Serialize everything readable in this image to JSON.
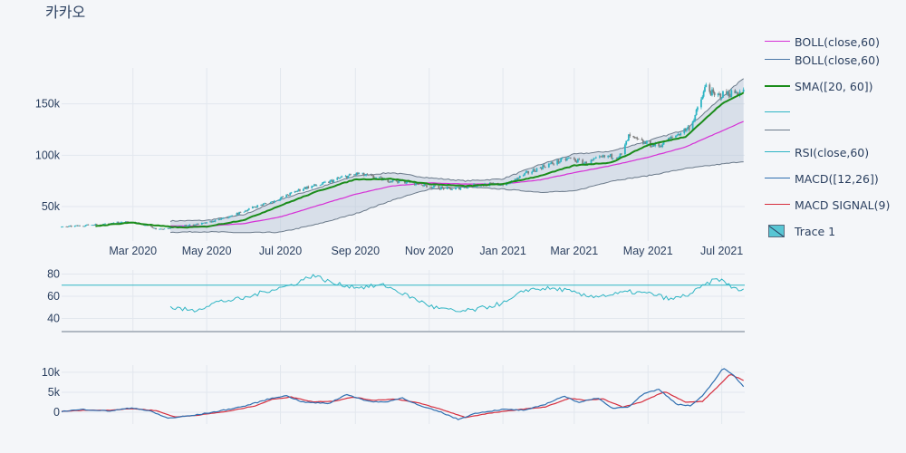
{
  "title": "카카오",
  "legend": [
    {
      "label": "BOLL(close,60)",
      "color": "#d62fd6",
      "kind": "line"
    },
    {
      "label": "BOLL(close,60)",
      "color": "#4c78a8",
      "kind": "line"
    },
    {
      "label": " SMA([20, 60])",
      "color": "#1a8c1a",
      "kind": "thick"
    },
    {
      "label": "",
      "color": "#2fb5c4",
      "kind": "line"
    },
    {
      "label": "",
      "color": "#6b7a8a",
      "kind": "line"
    },
    {
      "label": "RSI(close,60)",
      "color": "#2fb5c4",
      "kind": "line"
    },
    {
      "label": " MACD([12,26])",
      "color": "#2f6fb0",
      "kind": "line"
    },
    {
      "label": "MACD SIGNAL(9)",
      "color": "#d62f3f",
      "kind": "line"
    },
    {
      "label": "Trace 1",
      "color": "#58c6d4",
      "kind": "box"
    }
  ],
  "colors": {
    "increasing": "#2fb5c4",
    "decreasing": "#7f7f7f",
    "boll_mid": "#d62fd6",
    "boll_band": "#6b7a8a",
    "band_fill": "#b6c4d4",
    "sma": "#1a8c1a",
    "rsi": "#2fb5c4",
    "rsi_line": "#2fb5c4",
    "macd": "#2f6fb0",
    "signal": "#d62f3f",
    "grid": "#e2e7ee"
  },
  "chart_data": [
    {
      "type": "candlestick",
      "xaxis_ticks": [
        "Mar 2020",
        "May 2020",
        "Jul 2020",
        "Sep 2020",
        "Nov 2020",
        "Jan 2021",
        "Mar 2021",
        "May 2021",
        "Jul 2021"
      ],
      "yaxis_ticks": [
        "50k",
        "100k",
        "150k"
      ],
      "x_range": [
        "2020-01-02",
        "2021-07-20"
      ],
      "ylim": [
        20000,
        185000
      ],
      "price_keypoints": [
        [
          "2020-01-02",
          30000
        ],
        [
          "2020-02-10",
          33500
        ],
        [
          "2020-02-21",
          35000
        ],
        [
          "2020-03-05",
          34000
        ],
        [
          "2020-03-23",
          27500
        ],
        [
          "2020-04-10",
          31000
        ],
        [
          "2020-05-01",
          34000
        ],
        [
          "2020-05-20",
          40000
        ],
        [
          "2020-06-10",
          50000
        ],
        [
          "2020-06-25",
          55000
        ],
        [
          "2020-07-20",
          68000
        ],
        [
          "2020-08-05",
          72000
        ],
        [
          "2020-08-20",
          78000
        ],
        [
          "2020-09-03",
          82000
        ],
        [
          "2020-09-25",
          76000
        ],
        [
          "2020-10-15",
          74000
        ],
        [
          "2020-11-05",
          69000
        ],
        [
          "2020-11-20",
          67000
        ],
        [
          "2020-12-10",
          71000
        ],
        [
          "2021-01-05",
          72000
        ],
        [
          "2021-01-20",
          82000
        ],
        [
          "2021-02-05",
          90000
        ],
        [
          "2021-02-25",
          97000
        ],
        [
          "2021-03-10",
          92000
        ],
        [
          "2021-03-25",
          98000
        ],
        [
          "2021-04-09",
          100000
        ],
        [
          "2021-04-15",
          118000
        ],
        [
          "2021-04-27",
          112000
        ],
        [
          "2021-05-10",
          109000
        ],
        [
          "2021-05-25",
          120000
        ],
        [
          "2021-06-05",
          128000
        ],
        [
          "2021-06-12",
          147000
        ],
        [
          "2021-06-18",
          168000
        ],
        [
          "2021-06-25",
          157000
        ],
        [
          "2021-07-05",
          160000
        ],
        [
          "2021-07-19",
          162000
        ]
      ],
      "sma20_keypoints": [
        [
          "2020-01-30",
          31000
        ],
        [
          "2020-02-28",
          34500
        ],
        [
          "2020-03-20",
          31500
        ],
        [
          "2020-04-10",
          29500
        ],
        [
          "2020-05-01",
          30500
        ],
        [
          "2020-06-01",
          37000
        ],
        [
          "2020-07-01",
          51000
        ],
        [
          "2020-08-01",
          65000
        ],
        [
          "2020-09-01",
          76500
        ],
        [
          "2020-10-01",
          77000
        ],
        [
          "2020-11-01",
          72000
        ],
        [
          "2020-12-01",
          70000
        ],
        [
          "2021-01-01",
          72000
        ],
        [
          "2021-02-01",
          80000
        ],
        [
          "2021-03-01",
          90000
        ],
        [
          "2021-04-01",
          93000
        ],
        [
          "2021-05-01",
          110000
        ],
        [
          "2021-06-01",
          118000
        ],
        [
          "2021-07-01",
          150000
        ],
        [
          "2021-07-19",
          161000
        ]
      ],
      "boll_mid_keypoints": [
        [
          "2020-04-01",
          31000
        ],
        [
          "2020-05-01",
          31000
        ],
        [
          "2020-06-01",
          33500
        ],
        [
          "2020-07-01",
          40000
        ],
        [
          "2020-08-01",
          51000
        ],
        [
          "2020-09-01",
          62000
        ],
        [
          "2020-10-01",
          70000
        ],
        [
          "2020-11-01",
          73000
        ],
        [
          "2020-12-01",
          72000
        ],
        [
          "2021-01-01",
          72000
        ],
        [
          "2021-02-01",
          76000
        ],
        [
          "2021-03-01",
          83000
        ],
        [
          "2021-04-01",
          90000
        ],
        [
          "2021-05-01",
          98000
        ],
        [
          "2021-06-01",
          108000
        ],
        [
          "2021-07-19",
          133000
        ]
      ],
      "boll_upper_keypoints": [
        [
          "2020-04-01",
          36000
        ],
        [
          "2020-05-01",
          36500
        ],
        [
          "2020-06-01",
          42000
        ],
        [
          "2020-07-01",
          57000
        ],
        [
          "2020-08-01",
          68000
        ],
        [
          "2020-09-01",
          80000
        ],
        [
          "2020-10-01",
          83000
        ],
        [
          "2020-11-01",
          78000
        ],
        [
          "2020-12-01",
          75000
        ],
        [
          "2021-01-01",
          77000
        ],
        [
          "2021-02-01",
          91000
        ],
        [
          "2021-03-01",
          101000
        ],
        [
          "2021-04-01",
          104000
        ],
        [
          "2021-05-01",
          114000
        ],
        [
          "2021-06-01",
          125000
        ],
        [
          "2021-07-19",
          175000
        ]
      ],
      "boll_lower_keypoints": [
        [
          "2020-04-01",
          25000
        ],
        [
          "2020-05-01",
          25500
        ],
        [
          "2020-06-01",
          24500
        ],
        [
          "2020-07-01",
          25000
        ],
        [
          "2020-08-01",
          33000
        ],
        [
          "2020-09-01",
          43000
        ],
        [
          "2020-10-01",
          56000
        ],
        [
          "2020-11-01",
          67000
        ],
        [
          "2020-12-01",
          69000
        ],
        [
          "2021-01-01",
          67000
        ],
        [
          "2021-02-01",
          64000
        ],
        [
          "2021-03-01",
          65000
        ],
        [
          "2021-04-01",
          75000
        ],
        [
          "2021-05-01",
          80000
        ],
        [
          "2021-06-01",
          87000
        ],
        [
          "2021-07-19",
          94000
        ]
      ]
    },
    {
      "type": "line",
      "name": "RSI(close,60)",
      "yaxis_ticks": [
        "40",
        "60",
        "80"
      ],
      "ylim": [
        29,
        82
      ],
      "reference_line": 70,
      "keypoints": [
        [
          "2020-04-01",
          50
        ],
        [
          "2020-04-20",
          47
        ],
        [
          "2020-05-10",
          55
        ],
        [
          "2020-06-01",
          58
        ],
        [
          "2020-06-20",
          65
        ],
        [
          "2020-07-10",
          70
        ],
        [
          "2020-07-28",
          79
        ],
        [
          "2020-08-15",
          71
        ],
        [
          "2020-09-05",
          68
        ],
        [
          "2020-09-25",
          70
        ],
        [
          "2020-10-15",
          60
        ],
        [
          "2020-11-05",
          50
        ],
        [
          "2020-11-25",
          46
        ],
        [
          "2020-12-10",
          48
        ],
        [
          "2021-01-05",
          55
        ],
        [
          "2021-01-20",
          66
        ],
        [
          "2021-02-05",
          67
        ],
        [
          "2021-02-20",
          66
        ],
        [
          "2021-03-10",
          60
        ],
        [
          "2021-03-30",
          61
        ],
        [
          "2021-04-15",
          64
        ],
        [
          "2021-05-05",
          62
        ],
        [
          "2021-05-20",
          57
        ],
        [
          "2021-06-05",
          62
        ],
        [
          "2021-06-20",
          72
        ],
        [
          "2021-06-28",
          76
        ],
        [
          "2021-07-10",
          68
        ],
        [
          "2021-07-19",
          65
        ]
      ]
    },
    {
      "type": "line",
      "series": [
        {
          "name": "MACD([12,26])"
        },
        {
          "name": "MACD SIGNAL(9)"
        }
      ],
      "yaxis_ticks": [
        "0",
        "5k",
        "10k"
      ],
      "ylim": [
        -2500,
        11800
      ],
      "macd_keypoints": [
        [
          "2020-01-02",
          200
        ],
        [
          "2020-01-20",
          700
        ],
        [
          "2020-02-10",
          300
        ],
        [
          "2020-03-01",
          1100
        ],
        [
          "2020-03-15",
          300
        ],
        [
          "2020-03-30",
          -1500
        ],
        [
          "2020-04-20",
          -800
        ],
        [
          "2020-05-10",
          200
        ],
        [
          "2020-06-01",
          1500
        ],
        [
          "2020-06-20",
          3200
        ],
        [
          "2020-07-05",
          4200
        ],
        [
          "2020-07-20",
          2500
        ],
        [
          "2020-08-10",
          2200
        ],
        [
          "2020-08-25",
          4500
        ],
        [
          "2020-09-10",
          2800
        ],
        [
          "2020-09-25",
          2500
        ],
        [
          "2020-10-10",
          3600
        ],
        [
          "2020-10-25",
          1500
        ],
        [
          "2020-11-10",
          100
        ],
        [
          "2020-11-25",
          -1800
        ],
        [
          "2020-12-10",
          -200
        ],
        [
          "2021-01-01",
          700
        ],
        [
          "2021-01-20",
          500
        ],
        [
          "2021-02-05",
          2000
        ],
        [
          "2021-02-20",
          4000
        ],
        [
          "2021-03-05",
          2500
        ],
        [
          "2021-03-20",
          3600
        ],
        [
          "2021-04-01",
          1000
        ],
        [
          "2021-04-15",
          1400
        ],
        [
          "2021-04-28",
          4800
        ],
        [
          "2021-05-10",
          5700
        ],
        [
          "2021-05-25",
          2000
        ],
        [
          "2021-06-05",
          1600
        ],
        [
          "2021-06-15",
          4000
        ],
        [
          "2021-06-25",
          8000
        ],
        [
          "2021-07-02",
          11000
        ],
        [
          "2021-07-10",
          9500
        ],
        [
          "2021-07-19",
          6500
        ]
      ],
      "signal_keypoints": [
        [
          "2020-01-02",
          200
        ],
        [
          "2020-01-20",
          500
        ],
        [
          "2020-02-10",
          500
        ],
        [
          "2020-03-01",
          900
        ],
        [
          "2020-03-20",
          400
        ],
        [
          "2020-04-05",
          -1200
        ],
        [
          "2020-04-25",
          -700
        ],
        [
          "2020-05-20",
          300
        ],
        [
          "2020-06-10",
          1600
        ],
        [
          "2020-06-25",
          3300
        ],
        [
          "2020-07-10",
          3800
        ],
        [
          "2020-07-28",
          2600
        ],
        [
          "2020-08-15",
          2800
        ],
        [
          "2020-08-30",
          3800
        ],
        [
          "2020-09-15",
          3000
        ],
        [
          "2020-10-05",
          3300
        ],
        [
          "2020-10-25",
          2200
        ],
        [
          "2020-11-10",
          800
        ],
        [
          "2020-12-01",
          -1300
        ],
        [
          "2020-12-20",
          -300
        ],
        [
          "2021-01-15",
          700
        ],
        [
          "2021-02-05",
          1300
        ],
        [
          "2021-02-25",
          3500
        ],
        [
          "2021-03-10",
          3000
        ],
        [
          "2021-03-25",
          3300
        ],
        [
          "2021-04-10",
          1300
        ],
        [
          "2021-04-25",
          2500
        ],
        [
          "2021-05-15",
          5200
        ],
        [
          "2021-06-01",
          2500
        ],
        [
          "2021-06-15",
          2700
        ],
        [
          "2021-06-28",
          6500
        ],
        [
          "2021-07-08",
          9500
        ],
        [
          "2021-07-19",
          8000
        ]
      ]
    }
  ]
}
